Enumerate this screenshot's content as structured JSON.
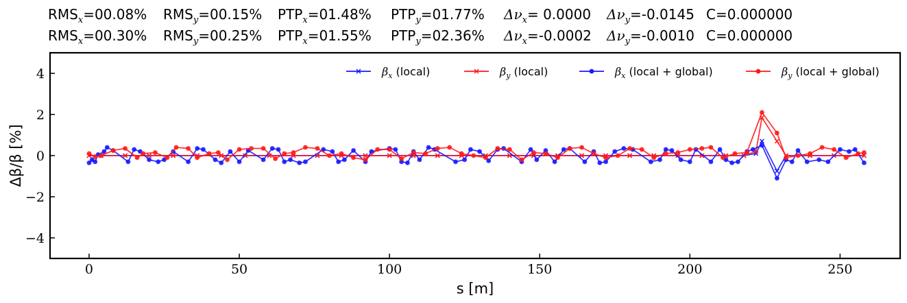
{
  "stats": {
    "rows": [
      [
        {
          "base": "RMS",
          "sub": "x",
          "value": "=00.08%"
        },
        {
          "base": "RMS",
          "sub": "y",
          "value": "=00.15%"
        },
        {
          "base": "PTP",
          "sub": "x",
          "value": "=01.48%"
        },
        {
          "base": "PTP",
          "sub": "y",
          "value": "=01.77%"
        },
        {
          "base": "Δν",
          "sub": "x",
          "value": "= 0.0000"
        },
        {
          "base": "Δν",
          "sub": "y",
          "value": "=-0.0145"
        },
        {
          "base": "C",
          "sub": "",
          "value": "=0.000000"
        }
      ],
      [
        {
          "base": "RMS",
          "sub": "x",
          "value": "=00.30%"
        },
        {
          "base": "RMS",
          "sub": "y",
          "value": "=00.25%"
        },
        {
          "base": "PTP",
          "sub": "x",
          "value": "=01.55%"
        },
        {
          "base": "PTP",
          "sub": "y",
          "value": "=02.36%"
        },
        {
          "base": "Δν",
          "sub": "x",
          "value": "=-0.0002"
        },
        {
          "base": "Δν",
          "sub": "y",
          "value": "=-0.0010"
        },
        {
          "base": "C",
          "sub": "",
          "value": "=0.000000"
        }
      ]
    ]
  },
  "chart_data": {
    "type": "line",
    "xlabel": "s [m]",
    "ylabel": "Δβ/β [%]",
    "xlim": [
      -13,
      270
    ],
    "ylim": [
      -5,
      5
    ],
    "xticks": [
      0,
      50,
      100,
      150,
      200,
      250
    ],
    "yticks": [
      -4,
      -2,
      0,
      2,
      4
    ],
    "tick_labels_x": [
      "0",
      "50",
      "100",
      "150",
      "200",
      "250"
    ],
    "tick_labels_y": [
      "−4",
      "−2",
      "0",
      "2",
      "4"
    ],
    "grid": false,
    "legend_placement": "top-right",
    "series": [
      {
        "name": "βx (local)",
        "legend_base": "β",
        "legend_sub": "x",
        "legend_suffix": " (local)",
        "color": "#1a1aff",
        "marker": "x",
        "x": [
          0,
          4,
          12,
          20,
          28,
          36,
          44,
          52,
          60,
          68,
          76,
          84,
          92,
          100,
          108,
          116,
          124,
          132,
          140,
          148,
          156,
          164,
          172,
          180,
          188,
          196,
          204,
          212,
          218,
          222,
          224,
          229,
          232,
          240,
          248,
          258
        ],
        "y": [
          0,
          0,
          0,
          0,
          0,
          0,
          0,
          0,
          0,
          0,
          0,
          0,
          0,
          0,
          0,
          0,
          0,
          0,
          0,
          0,
          0,
          0,
          0,
          0,
          0,
          0,
          0,
          0,
          0,
          0.1,
          0.7,
          -0.75,
          0,
          0,
          0,
          0
        ]
      },
      {
        "name": "βy (local)",
        "legend_base": "β",
        "legend_sub": "y",
        "legend_suffix": " (local)",
        "color": "#ff1a1a",
        "marker": "x",
        "x": [
          0,
          4,
          12,
          20,
          28,
          36,
          44,
          52,
          60,
          68,
          76,
          84,
          92,
          100,
          108,
          116,
          124,
          132,
          140,
          148,
          156,
          164,
          172,
          180,
          188,
          196,
          204,
          212,
          218,
          222,
          224,
          229,
          232,
          240,
          248,
          258
        ],
        "y": [
          0,
          0,
          0,
          0,
          0,
          0,
          0,
          0,
          0,
          0,
          0,
          0,
          0,
          0,
          0,
          0,
          0,
          0,
          0,
          0,
          0,
          0,
          0,
          0,
          0,
          0,
          0,
          0,
          0,
          0.2,
          1.85,
          0.7,
          0,
          0,
          0,
          0
        ]
      },
      {
        "name": "βx (local + global)",
        "legend_base": "β",
        "legend_sub": "x",
        "legend_suffix": " (local + global)",
        "color": "#1a1aff",
        "marker": "o",
        "x": [
          0,
          1,
          2,
          3,
          5,
          6,
          8,
          13,
          15,
          17,
          20,
          23,
          25,
          28,
          33,
          36,
          38,
          42,
          44,
          47,
          50,
          53,
          58,
          61,
          63,
          65,
          67,
          70,
          72,
          78,
          81,
          83,
          85,
          88,
          92,
          94,
          100,
          102,
          104,
          106,
          108,
          110,
          113,
          115,
          122,
          125,
          127,
          130,
          133,
          136,
          138,
          144,
          147,
          149,
          152,
          155,
          158,
          160,
          165,
          168,
          170,
          172,
          175,
          178,
          181,
          187,
          190,
          192,
          194,
          197,
          200,
          202,
          207,
          210,
          212,
          214,
          216,
          219,
          221,
          224,
          229,
          232,
          234,
          236,
          239,
          243,
          246,
          250,
          253,
          255,
          258
        ],
        "y": [
          -0.35,
          -0.2,
          -0.3,
          0.05,
          0.2,
          0.4,
          0.25,
          -0.3,
          0.3,
          0.2,
          -0.2,
          -0.3,
          -0.2,
          0.2,
          -0.3,
          0.35,
          0.3,
          -0.2,
          -0.35,
          0.2,
          -0.3,
          0.25,
          -0.2,
          0.35,
          0.3,
          -0.3,
          -0.2,
          -0.35,
          -0.3,
          0.3,
          0.2,
          -0.3,
          -0.2,
          0.25,
          -0.3,
          0.2,
          0.35,
          0.3,
          -0.3,
          -0.35,
          0.2,
          -0.2,
          0.4,
          0.3,
          -0.3,
          -0.2,
          0.3,
          0.2,
          -0.25,
          0.3,
          0.35,
          -0.3,
          0.3,
          -0.2,
          0.25,
          -0.3,
          0.3,
          0.35,
          -0.3,
          0.2,
          -0.35,
          -0.3,
          0.2,
          0.35,
          0.3,
          -0.3,
          -0.2,
          0.3,
          0.25,
          -0.2,
          -0.3,
          0.3,
          -0.3,
          0.3,
          -0.2,
          -0.35,
          -0.3,
          0.2,
          0.3,
          0.5,
          -1.1,
          -0.2,
          -0.3,
          0.25,
          -0.3,
          -0.2,
          -0.3,
          0.3,
          0.2,
          0.3,
          -0.35
        ]
      },
      {
        "name": "βy (local + global)",
        "legend_base": "β",
        "legend_sub": "y",
        "legend_suffix": " (local + global)",
        "color": "#ff1a1a",
        "marker": "o",
        "x": [
          0,
          2,
          4,
          8,
          12,
          16,
          18,
          22,
          26,
          29,
          33,
          36,
          40,
          43,
          46,
          50,
          54,
          58,
          62,
          65,
          68,
          72,
          76,
          80,
          84,
          88,
          92,
          96,
          100,
          104,
          108,
          112,
          116,
          120,
          124,
          128,
          132,
          136,
          140,
          144,
          148,
          152,
          156,
          160,
          164,
          168,
          172,
          176,
          180,
          184,
          188,
          192,
          196,
          200,
          204,
          207,
          211,
          215,
          219,
          224,
          229,
          232,
          236,
          240,
          244,
          248,
          252,
          256,
          258
        ],
        "y": [
          0.1,
          -0.05,
          0.0,
          0.25,
          0.35,
          -0.1,
          0.1,
          0.15,
          -0.1,
          0.4,
          0.35,
          -0.1,
          0.1,
          0.15,
          -0.2,
          0.3,
          0.35,
          0.35,
          -0.15,
          0.1,
          0.15,
          0.4,
          0.35,
          0.0,
          0.1,
          -0.1,
          -0.2,
          0.3,
          0.3,
          -0.15,
          0.15,
          0.1,
          0.35,
          0.4,
          0.1,
          0.0,
          -0.1,
          0.35,
          0.3,
          -0.2,
          0.15,
          0.1,
          -0.1,
          0.35,
          0.4,
          0.1,
          -0.1,
          0.0,
          0.35,
          0.3,
          -0.1,
          0.1,
          0.15,
          0.3,
          0.35,
          0.4,
          -0.1,
          0.1,
          0.15,
          2.1,
          1.1,
          -0.1,
          0.0,
          0.1,
          0.4,
          0.3,
          -0.1,
          0.1,
          0.15
        ]
      }
    ]
  }
}
